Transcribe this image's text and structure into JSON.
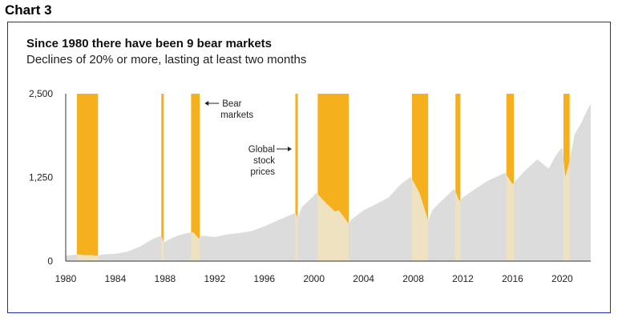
{
  "page": {
    "heading": "Chart 3"
  },
  "chart_data": {
    "type": "area",
    "title": "Since 1980 there have been 9 bear markets",
    "subtitle": "Declines of 20% or more, lasting at least two months",
    "xlabel": "",
    "ylabel": "",
    "xlim": [
      1980,
      2022.3
    ],
    "ylim": [
      0,
      2500
    ],
    "x_ticks": [
      1980,
      1984,
      1988,
      1992,
      1996,
      2000,
      2004,
      2008,
      2012,
      2016,
      2020
    ],
    "x_tick_labels": [
      "1980",
      "1984",
      "1988",
      "1992",
      "1996",
      "2000",
      "2004",
      "2008",
      "2012",
      "2016",
      "2020"
    ],
    "y_ticks": [
      0,
      1250,
      2500
    ],
    "y_tick_labels": [
      "0",
      "1,250",
      "2,500"
    ],
    "grid": false,
    "colors": {
      "area": "#dcdcdc",
      "bear": "#f6b01e",
      "overlap": "#efe2c0",
      "axis": "#333333"
    },
    "series": [
      {
        "x": [
          1980.0,
          1980.5,
          1981.0,
          1981.5,
          1982.0,
          1982.6,
          1983.0,
          1984.0,
          1985.0,
          1986.0,
          1987.0,
          1987.7,
          1987.9,
          1988.5,
          1989.0,
          1989.8,
          1990.3,
          1990.7,
          1991.0,
          1992.0,
          1993.0,
          1994.0,
          1995.0,
          1996.0,
          1997.0,
          1998.5,
          1998.7,
          1999.0,
          2000.0,
          2000.2,
          2001.0,
          2001.7,
          2002.0,
          2002.8,
          2003.0,
          2004.0,
          2005.0,
          2006.0,
          2007.0,
          2007.8,
          2008.5,
          2009.2,
          2009.5,
          2010.0,
          2011.3,
          2011.7,
          2012.0,
          2013.0,
          2014.0,
          2015.4,
          2016.0,
          2017.0,
          2018.0,
          2018.9,
          2019.5,
          2020.0,
          2020.25,
          2020.6,
          2021.0,
          2021.5,
          2022.0,
          2022.3
        ],
        "values": [
          80,
          90,
          100,
          90,
          90,
          80,
          100,
          110,
          140,
          220,
          330,
          380,
          280,
          340,
          380,
          420,
          430,
          340,
          380,
          360,
          400,
          420,
          450,
          520,
          600,
          720,
          640,
          800,
          980,
          1020,
          860,
          740,
          760,
          560,
          620,
          760,
          850,
          950,
          1150,
          1260,
          1020,
          600,
          750,
          850,
          1080,
          900,
          950,
          1080,
          1200,
          1320,
          1150,
          1350,
          1520,
          1380,
          1580,
          1700,
          1250,
          1500,
          1900,
          2050,
          2250,
          2350
        ]
      }
    ],
    "bear_markets": [
      [
        1980.9,
        1982.6
      ],
      [
        1987.7,
        1987.9
      ],
      [
        1990.1,
        1990.8
      ],
      [
        1998.5,
        1998.7
      ],
      [
        2000.3,
        2002.8
      ],
      [
        2007.9,
        2009.2
      ],
      [
        2011.4,
        2011.8
      ],
      [
        2015.5,
        2016.1
      ],
      [
        2020.1,
        2020.6
      ]
    ],
    "annotations": [
      {
        "text_lines": [
          "Bear",
          "markets"
        ],
        "target": "1990.8"
      },
      {
        "text_lines": [
          "Global",
          "stock",
          "prices"
        ],
        "target": "1998.5"
      }
    ]
  }
}
